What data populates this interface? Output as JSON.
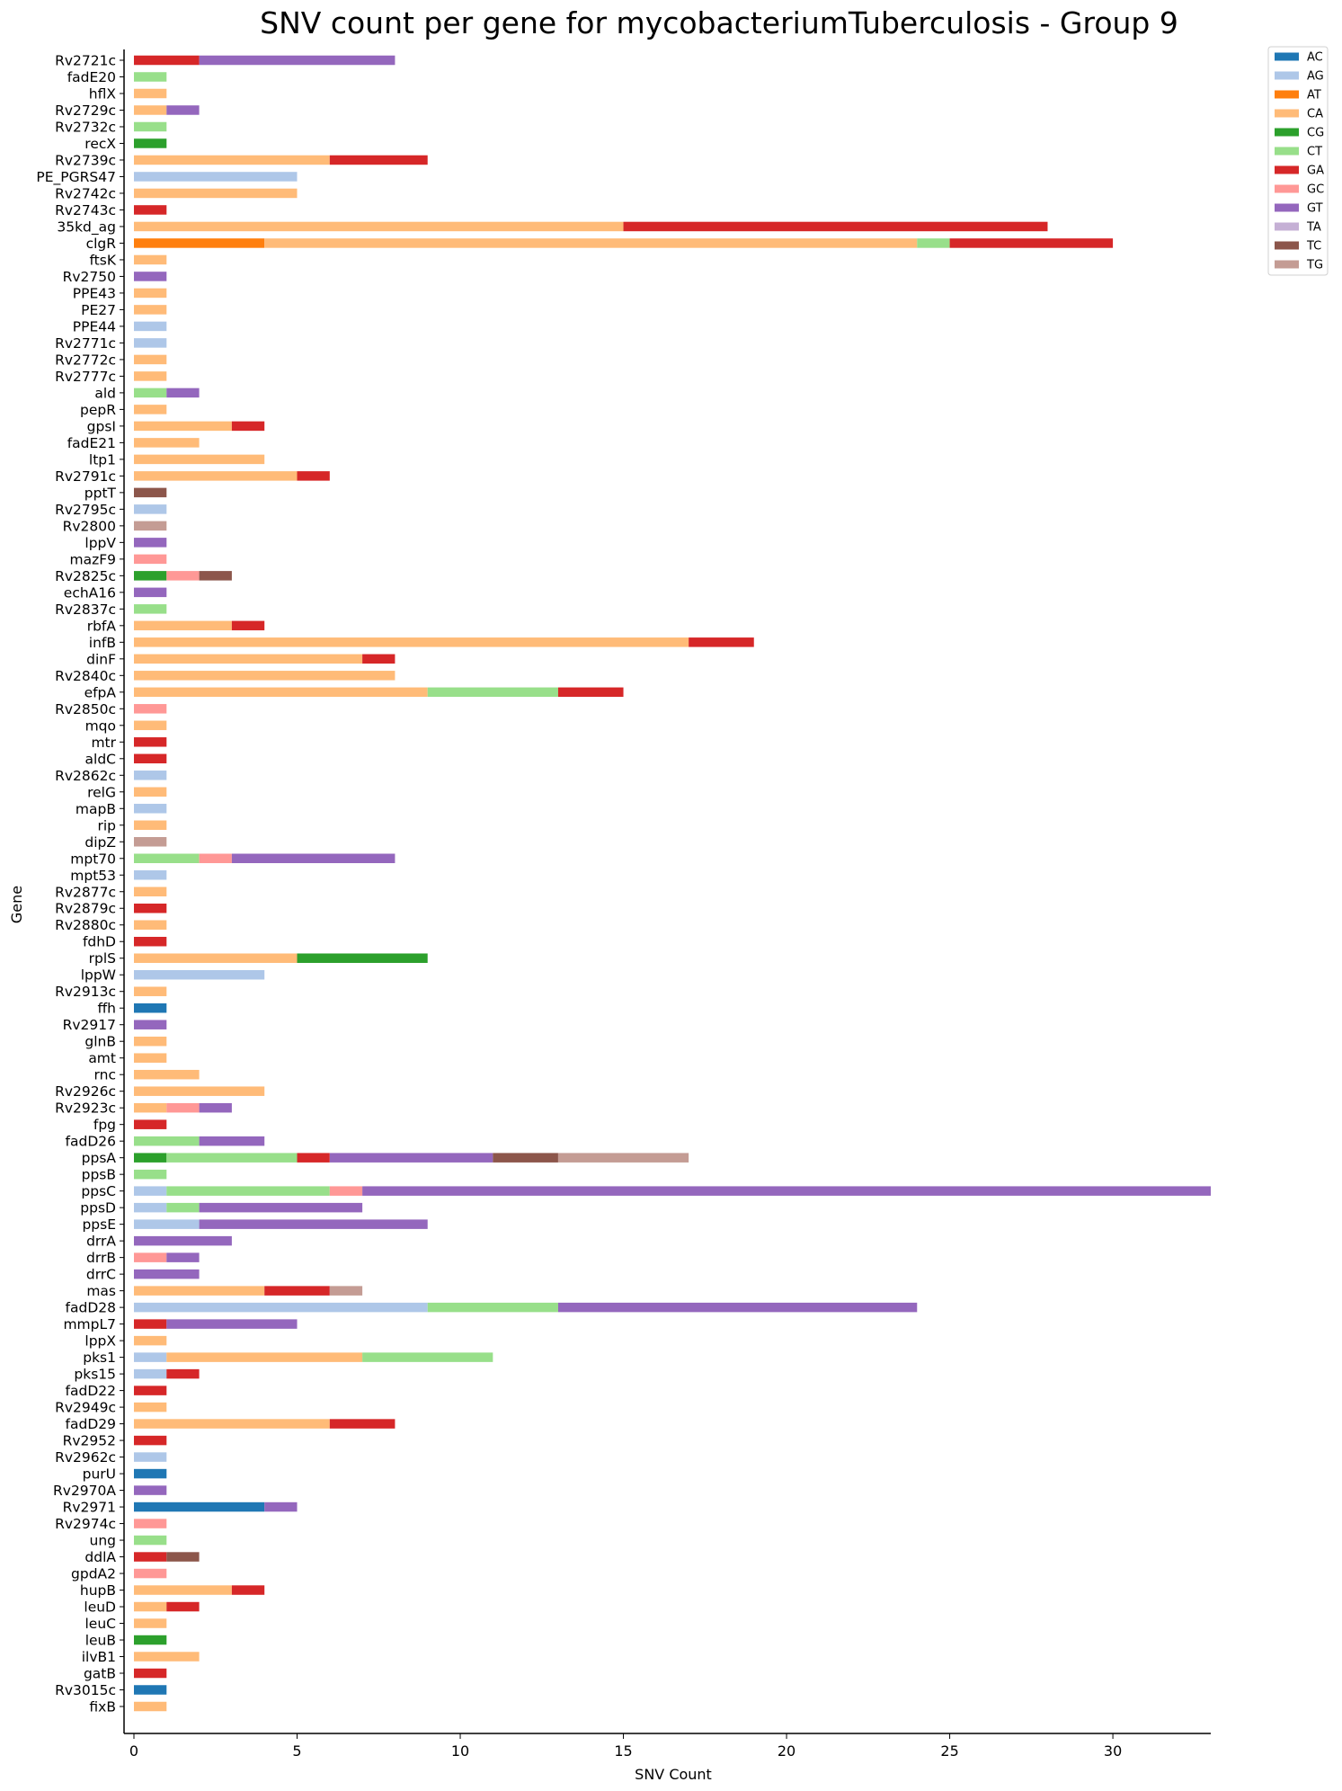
{
  "chart_data": {
    "type": "bar",
    "orientation": "horizontal",
    "stacked": true,
    "title": "SNV count per gene for mycobacteriumTuberculosis - Group 9",
    "xlabel": "SNV Count",
    "ylabel": "Gene",
    "xlim": [
      0,
      33
    ],
    "xticks": [
      0,
      5,
      10,
      15,
      20,
      25,
      30
    ],
    "legend_position": "top-right",
    "series_names": [
      "AC",
      "AG",
      "AT",
      "CA",
      "CG",
      "CT",
      "GA",
      "GC",
      "GT",
      "TA",
      "TC",
      "TG"
    ],
    "colors": {
      "AC": "#1f77b4",
      "AG": "#aec7e8",
      "AT": "#ff7f0e",
      "CA": "#ffbb78",
      "CG": "#2ca02c",
      "CT": "#98df8a",
      "GA": "#d62728",
      "GC": "#ff9896",
      "GT": "#9467bd",
      "TA": "#c5b0d5",
      "TC": "#8c564b",
      "TG": "#c49c94"
    },
    "genes": [
      {
        "gene": "Rv2721c",
        "counts": {
          "GA": 2,
          "GT": 6
        }
      },
      {
        "gene": "fadE20",
        "counts": {
          "CT": 1
        }
      },
      {
        "gene": "hflX",
        "counts": {
          "CA": 1
        }
      },
      {
        "gene": "Rv2729c",
        "counts": {
          "CA": 1,
          "GT": 1
        }
      },
      {
        "gene": "Rv2732c",
        "counts": {
          "CT": 1
        }
      },
      {
        "gene": "recX",
        "counts": {
          "CG": 1
        }
      },
      {
        "gene": "Rv2739c",
        "counts": {
          "CA": 6,
          "GA": 3
        }
      },
      {
        "gene": "PE_PGRS47",
        "counts": {
          "AG": 5
        }
      },
      {
        "gene": "Rv2742c",
        "counts": {
          "CA": 5
        }
      },
      {
        "gene": "Rv2743c",
        "counts": {
          "GA": 1
        }
      },
      {
        "gene": "35kd_ag",
        "counts": {
          "CA": 15,
          "GA": 13
        }
      },
      {
        "gene": "clgR",
        "counts": {
          "AT": 4,
          "CA": 20,
          "CT": 1,
          "GA": 5
        }
      },
      {
        "gene": "ftsK",
        "counts": {
          "CA": 1
        }
      },
      {
        "gene": "Rv2750",
        "counts": {
          "GT": 1
        }
      },
      {
        "gene": "PPE43",
        "counts": {
          "CA": 1
        }
      },
      {
        "gene": "PE27",
        "counts": {
          "CA": 1
        }
      },
      {
        "gene": "PPE44",
        "counts": {
          "AG": 1
        }
      },
      {
        "gene": "Rv2771c",
        "counts": {
          "AG": 1
        }
      },
      {
        "gene": "Rv2772c",
        "counts": {
          "CA": 1
        }
      },
      {
        "gene": "Rv2777c",
        "counts": {
          "CA": 1
        }
      },
      {
        "gene": "ald",
        "counts": {
          "CT": 1,
          "GT": 1
        }
      },
      {
        "gene": "pepR",
        "counts": {
          "CA": 1
        }
      },
      {
        "gene": "gpsI",
        "counts": {
          "CA": 3,
          "GA": 1
        }
      },
      {
        "gene": "fadE21",
        "counts": {
          "CA": 2
        }
      },
      {
        "gene": "ltp1",
        "counts": {
          "CA": 4
        }
      },
      {
        "gene": "Rv2791c",
        "counts": {
          "CA": 5,
          "GA": 1
        }
      },
      {
        "gene": "pptT",
        "counts": {
          "TC": 1
        }
      },
      {
        "gene": "Rv2795c",
        "counts": {
          "AG": 1
        }
      },
      {
        "gene": "Rv2800",
        "counts": {
          "TG": 1
        }
      },
      {
        "gene": "lppV",
        "counts": {
          "GT": 1
        }
      },
      {
        "gene": "mazF9",
        "counts": {
          "GC": 1
        }
      },
      {
        "gene": "Rv2825c",
        "counts": {
          "CG": 1,
          "GC": 1,
          "TC": 1
        }
      },
      {
        "gene": "echA16",
        "counts": {
          "GT": 1
        }
      },
      {
        "gene": "Rv2837c",
        "counts": {
          "CT": 1
        }
      },
      {
        "gene": "rbfA",
        "counts": {
          "CA": 3,
          "GA": 1
        }
      },
      {
        "gene": "infB",
        "counts": {
          "CA": 17,
          "GA": 2
        }
      },
      {
        "gene": "dinF",
        "counts": {
          "CA": 7,
          "GA": 1
        }
      },
      {
        "gene": "Rv2840c",
        "counts": {
          "CA": 8
        }
      },
      {
        "gene": "efpA",
        "counts": {
          "CA": 9,
          "CT": 4,
          "GA": 2
        }
      },
      {
        "gene": "Rv2850c",
        "counts": {
          "GC": 1
        }
      },
      {
        "gene": "mqo",
        "counts": {
          "CA": 1
        }
      },
      {
        "gene": "mtr",
        "counts": {
          "GA": 1
        }
      },
      {
        "gene": "aldC",
        "counts": {
          "GA": 1
        }
      },
      {
        "gene": "Rv2862c",
        "counts": {
          "AG": 1
        }
      },
      {
        "gene": "relG",
        "counts": {
          "CA": 1
        }
      },
      {
        "gene": "mapB",
        "counts": {
          "AG": 1
        }
      },
      {
        "gene": "rip",
        "counts": {
          "CA": 1
        }
      },
      {
        "gene": "dipZ",
        "counts": {
          "TG": 1
        }
      },
      {
        "gene": "mpt70",
        "counts": {
          "CT": 2,
          "GC": 1,
          "GT": 5
        }
      },
      {
        "gene": "mpt53",
        "counts": {
          "AG": 1
        }
      },
      {
        "gene": "Rv2877c",
        "counts": {
          "CA": 1
        }
      },
      {
        "gene": "Rv2879c",
        "counts": {
          "GA": 1
        }
      },
      {
        "gene": "Rv2880c",
        "counts": {
          "CA": 1
        }
      },
      {
        "gene": "fdhD",
        "counts": {
          "GA": 1
        }
      },
      {
        "gene": "rplS",
        "counts": {
          "CA": 5,
          "CG": 4
        }
      },
      {
        "gene": "lppW",
        "counts": {
          "AG": 4
        }
      },
      {
        "gene": "Rv2913c",
        "counts": {
          "CA": 1
        }
      },
      {
        "gene": "ffh",
        "counts": {
          "AC": 1
        }
      },
      {
        "gene": "Rv2917",
        "counts": {
          "GT": 1
        }
      },
      {
        "gene": "glnB",
        "counts": {
          "CA": 1
        }
      },
      {
        "gene": "amt",
        "counts": {
          "CA": 1
        }
      },
      {
        "gene": "rnc",
        "counts": {
          "CA": 2
        }
      },
      {
        "gene": "Rv2926c",
        "counts": {
          "CA": 4
        }
      },
      {
        "gene": "Rv2923c",
        "counts": {
          "CA": 1,
          "GC": 1,
          "GT": 1
        }
      },
      {
        "gene": "fpg",
        "counts": {
          "GA": 1
        }
      },
      {
        "gene": "fadD26",
        "counts": {
          "CT": 2,
          "GT": 2
        }
      },
      {
        "gene": "ppsA",
        "counts": {
          "CG": 1,
          "CT": 4,
          "GA": 1,
          "GT": 5,
          "TC": 2,
          "TG": 4
        }
      },
      {
        "gene": "ppsB",
        "counts": {
          "CT": 1
        }
      },
      {
        "gene": "ppsC",
        "counts": {
          "AG": 1,
          "CT": 5,
          "GC": 1,
          "GT": 26
        }
      },
      {
        "gene": "ppsD",
        "counts": {
          "AG": 1,
          "CT": 1,
          "GT": 5
        }
      },
      {
        "gene": "ppsE",
        "counts": {
          "AG": 2,
          "GT": 7
        }
      },
      {
        "gene": "drrA",
        "counts": {
          "GT": 3
        }
      },
      {
        "gene": "drrB",
        "counts": {
          "GC": 1,
          "GT": 1
        }
      },
      {
        "gene": "drrC",
        "counts": {
          "GT": 2
        }
      },
      {
        "gene": "mas",
        "counts": {
          "CA": 4,
          "GA": 2,
          "TG": 1
        }
      },
      {
        "gene": "fadD28",
        "counts": {
          "AG": 9,
          "CT": 4,
          "GT": 11
        }
      },
      {
        "gene": "mmpL7",
        "counts": {
          "GA": 1,
          "GT": 4
        }
      },
      {
        "gene": "lppX",
        "counts": {
          "CA": 1
        }
      },
      {
        "gene": "pks1",
        "counts": {
          "AG": 1,
          "CA": 6,
          "CT": 4
        }
      },
      {
        "gene": "pks15",
        "counts": {
          "AG": 1,
          "GA": 1
        }
      },
      {
        "gene": "fadD22",
        "counts": {
          "GA": 1
        }
      },
      {
        "gene": "Rv2949c",
        "counts": {
          "CA": 1
        }
      },
      {
        "gene": "fadD29",
        "counts": {
          "CA": 6,
          "GA": 2
        }
      },
      {
        "gene": "Rv2952",
        "counts": {
          "GA": 1
        }
      },
      {
        "gene": "Rv2962c",
        "counts": {
          "AG": 1
        }
      },
      {
        "gene": "purU",
        "counts": {
          "AC": 1
        }
      },
      {
        "gene": "Rv2970A",
        "counts": {
          "GT": 1
        }
      },
      {
        "gene": "Rv2971",
        "counts": {
          "AC": 4,
          "GT": 1
        }
      },
      {
        "gene": "Rv2974c",
        "counts": {
          "GC": 1
        }
      },
      {
        "gene": "ung",
        "counts": {
          "CT": 1
        }
      },
      {
        "gene": "ddlA",
        "counts": {
          "GA": 1,
          "TC": 1
        }
      },
      {
        "gene": "gpdA2",
        "counts": {
          "GC": 1
        }
      },
      {
        "gene": "hupB",
        "counts": {
          "CA": 3,
          "GA": 1
        }
      },
      {
        "gene": "leuD",
        "counts": {
          "CA": 1,
          "GA": 1
        }
      },
      {
        "gene": "leuC",
        "counts": {
          "CA": 1
        }
      },
      {
        "gene": "leuB",
        "counts": {
          "CG": 1
        }
      },
      {
        "gene": "ilvB1",
        "counts": {
          "CA": 2
        }
      },
      {
        "gene": "gatB",
        "counts": {
          "GA": 1
        }
      },
      {
        "gene": "Rv3015c",
        "counts": {
          "AC": 1
        }
      },
      {
        "gene": "fixB",
        "counts": {
          "CA": 1
        }
      }
    ]
  }
}
